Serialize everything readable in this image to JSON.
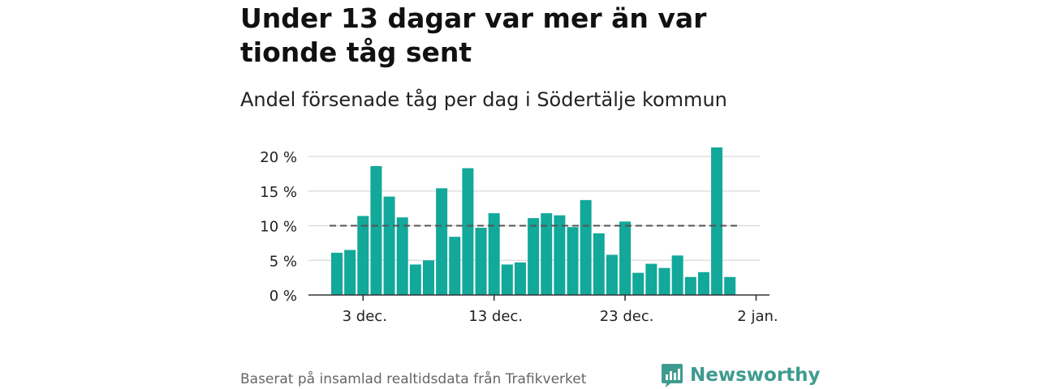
{
  "header": {
    "title": "Under 13 dagar var mer än var tionde tåg sent",
    "subtitle": "Andel försenade tåg per dag i Södertälje kommun"
  },
  "footer": {
    "source": "Baserat på insamlad realtidsdata från Trafikverket",
    "brand": "Newsworthy"
  },
  "colors": {
    "bar": "#12a89a",
    "threshold": "#555555",
    "grid": "#d9d9d9",
    "brand": "#3d9b8f"
  },
  "chart_data": {
    "type": "bar",
    "title": "Under 13 dagar var mer än var tionde tåg sent",
    "subtitle": "Andel försenade tåg per dag i Södertälje kommun",
    "x": [
      "2023-12-01",
      "2023-12-02",
      "2023-12-03",
      "2023-12-04",
      "2023-12-05",
      "2023-12-06",
      "2023-12-07",
      "2023-12-08",
      "2023-12-09",
      "2023-12-10",
      "2023-12-11",
      "2023-12-12",
      "2023-12-13",
      "2023-12-14",
      "2023-12-15",
      "2023-12-16",
      "2023-12-17",
      "2023-12-18",
      "2023-12-19",
      "2023-12-20",
      "2023-12-21",
      "2023-12-22",
      "2023-12-23",
      "2023-12-24",
      "2023-12-25",
      "2023-12-26",
      "2023-12-27",
      "2023-12-28",
      "2023-12-29",
      "2023-12-30",
      "2023-12-31"
    ],
    "values": [
      6.1,
      6.5,
      11.4,
      18.6,
      14.2,
      11.2,
      4.4,
      5.0,
      15.4,
      8.4,
      18.3,
      9.7,
      11.8,
      4.4,
      4.7,
      11.1,
      11.8,
      11.5,
      9.8,
      13.7,
      8.9,
      5.8,
      10.6,
      3.2,
      4.5,
      3.9,
      5.7,
      2.6,
      3.3,
      21.3,
      2.6
    ],
    "unit": "%",
    "ylim": [
      0,
      20
    ],
    "yticks": [
      0,
      5,
      10,
      15,
      20
    ],
    "ytick_labels": [
      "0 %",
      "5 %",
      "10 %",
      "15 %",
      "20 %"
    ],
    "xticks": [
      "2023-12-03",
      "2023-12-13",
      "2023-12-23",
      "2024-01-02"
    ],
    "xtick_labels": [
      "3 dec.",
      "13 dec.",
      "23 dec.",
      "2 jan."
    ],
    "reference_line": 10,
    "grid": true
  }
}
